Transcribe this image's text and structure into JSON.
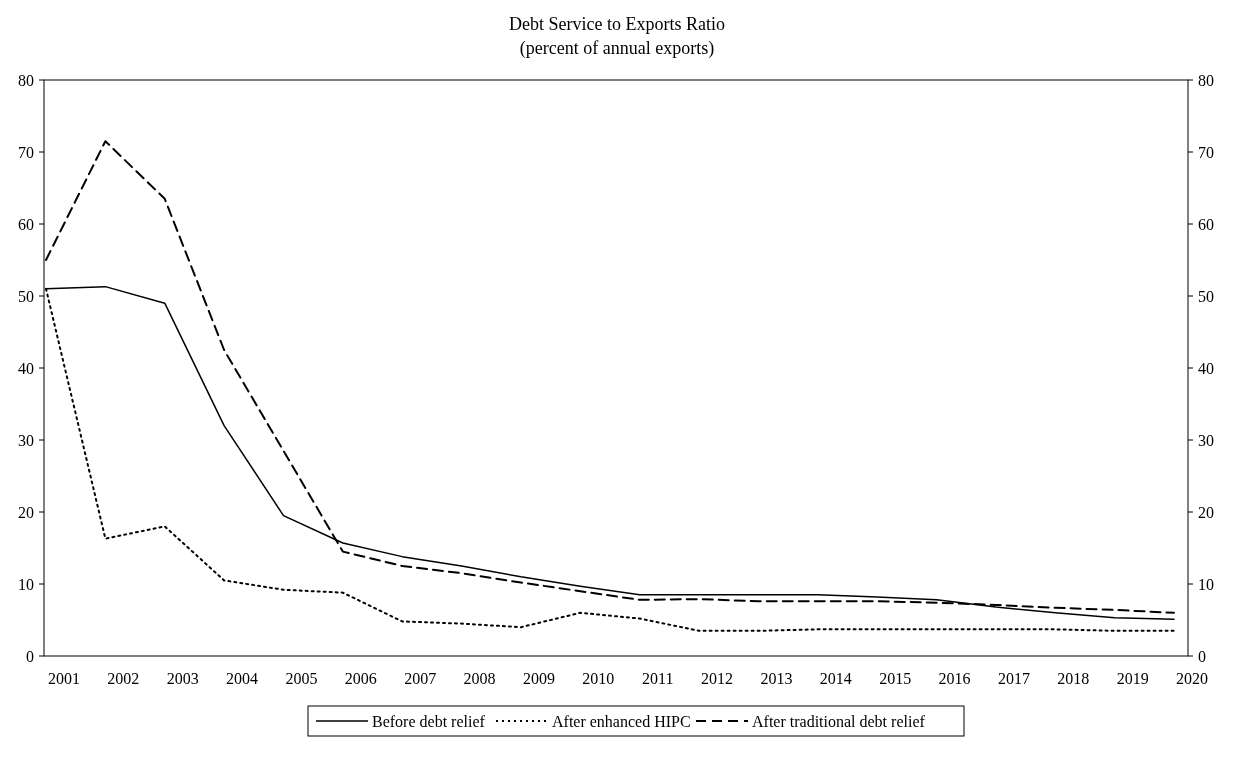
{
  "chart_data": {
    "type": "line",
    "title": "Debt Service to Exports Ratio",
    "subtitle": "(percent of annual exports)",
    "categories": [
      "2001",
      "2002",
      "2003",
      "2004",
      "2005",
      "2006",
      "2007",
      "2008",
      "2009",
      "2010",
      "2011",
      "2012",
      "2013",
      "2014",
      "2015",
      "2016",
      "2017",
      "2018",
      "2019",
      "2020"
    ],
    "series": [
      {
        "name": "Before debt relief",
        "color": "#000000",
        "line_style": "solid",
        "values": [
          51,
          51.3,
          49,
          32,
          19.5,
          15.7,
          13.8,
          12.5,
          11,
          9.7,
          8.5,
          8.5,
          8.5,
          8.5,
          8.2,
          7.8,
          6.8,
          6,
          5.3,
          5.1
        ]
      },
      {
        "name": "After enhanced HIPC",
        "color": "#000000",
        "line_style": "dotted",
        "values": [
          51,
          16.3,
          18,
          10.5,
          9.2,
          8.8,
          4.8,
          4.5,
          4,
          6,
          5.2,
          3.5,
          3.5,
          3.7,
          3.7,
          3.7,
          3.7,
          3.7,
          3.5,
          3.5
        ]
      },
      {
        "name": "After traditional debt relief",
        "color": "#000000",
        "line_style": "dashed",
        "values": [
          55,
          71.5,
          63.5,
          42.5,
          28.5,
          14.5,
          12.5,
          11.5,
          10.2,
          9,
          7.8,
          7.9,
          7.6,
          7.6,
          7.6,
          7.4,
          7.1,
          6.7,
          6.4,
          6
        ]
      }
    ],
    "ylim": [
      0,
      80
    ],
    "yticks": [
      0,
      10,
      20,
      30,
      40,
      50,
      60,
      70,
      80
    ],
    "y2lim": [
      0,
      80
    ],
    "y2ticks": [
      0,
      10,
      20,
      30,
      40,
      50,
      60,
      70,
      80
    ],
    "grid": false,
    "legend": "bottom",
    "marker": "none"
  }
}
